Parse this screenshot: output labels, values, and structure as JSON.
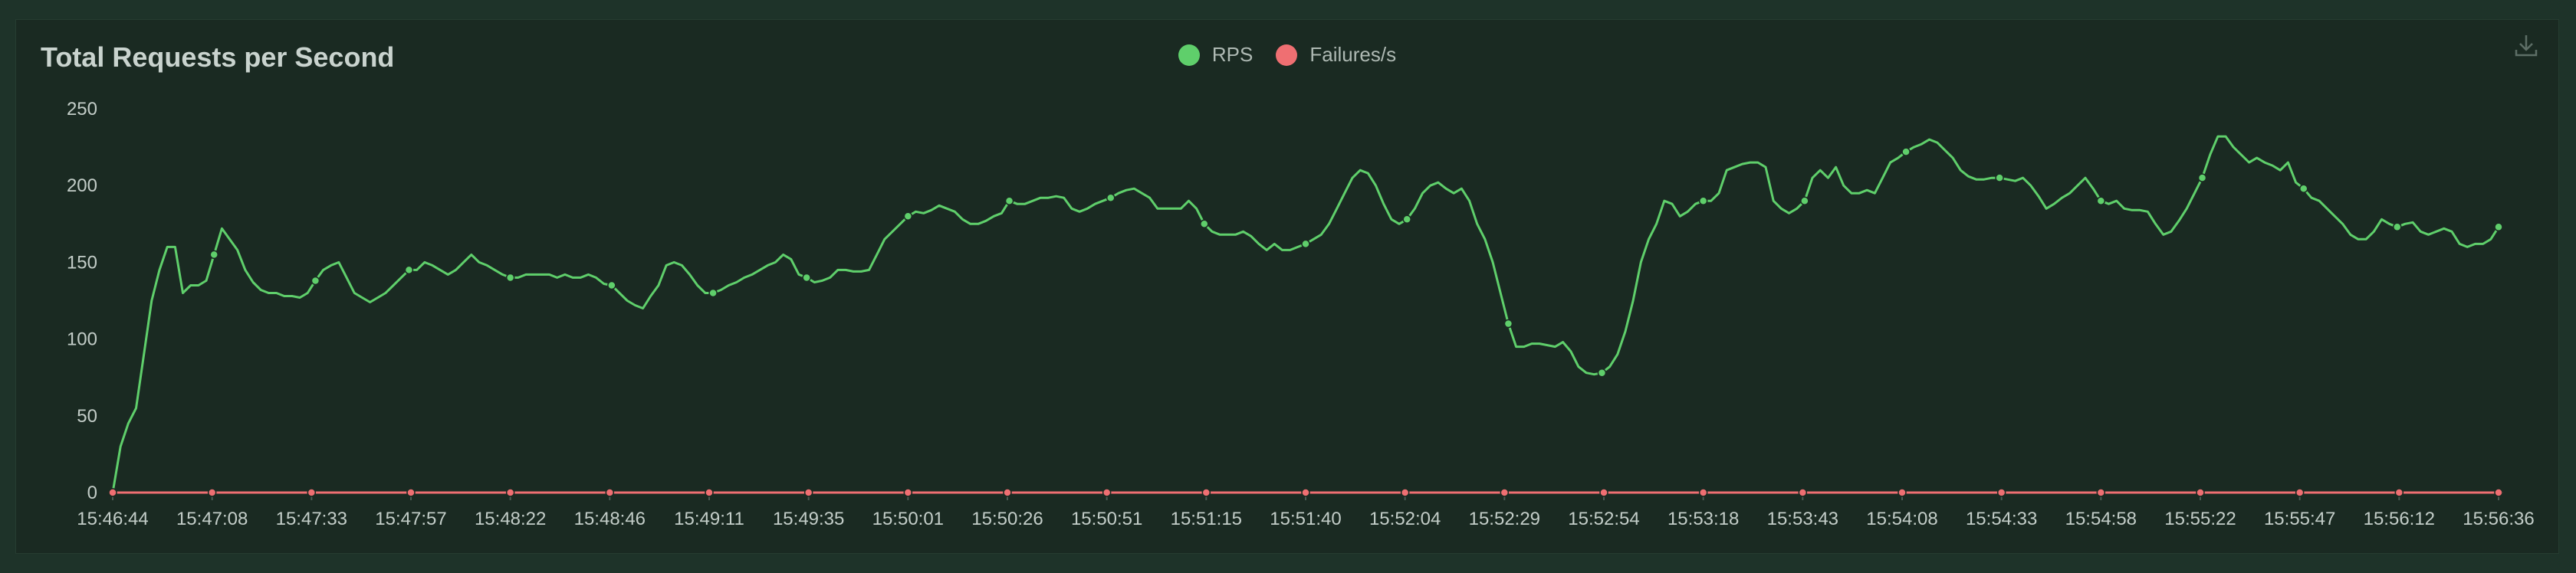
{
  "colors": {
    "rps": "#5fcf6b",
    "failures": "#ef6f72",
    "axis": "#4a5b53"
  },
  "download": {
    "icon": "download-icon"
  },
  "chart_data": {
    "type": "line",
    "title": "Total Requests per Second",
    "legend_position": "top-center",
    "grid": false,
    "ylim": [
      0,
      250
    ],
    "y_ticks": [
      "0",
      "50",
      "100",
      "150",
      "200",
      "250"
    ],
    "x_tick_labels": [
      "15:46:44",
      "15:47:08",
      "15:47:33",
      "15:47:57",
      "15:48:22",
      "15:48:46",
      "15:49:11",
      "15:49:35",
      "15:50:01",
      "15:50:26",
      "15:50:51",
      "15:51:15",
      "15:51:40",
      "15:52:04",
      "15:52:29",
      "15:52:54",
      "15:53:18",
      "15:53:43",
      "15:54:08",
      "15:54:33",
      "15:54:58",
      "15:55:22",
      "15:55:47",
      "15:56:12",
      "15:56:36"
    ],
    "series": [
      {
        "name": "RPS",
        "color": "#5fcf6b",
        "values": [
          0,
          30,
          45,
          55,
          90,
          125,
          145,
          160,
          160,
          130,
          135,
          135,
          138,
          155,
          172,
          165,
          158,
          145,
          137,
          132,
          130,
          130,
          128,
          128,
          127,
          130,
          138,
          145,
          148,
          150,
          140,
          130,
          127,
          124,
          127,
          130,
          135,
          140,
          145,
          145,
          150,
          148,
          145,
          142,
          145,
          150,
          155,
          150,
          148,
          145,
          142,
          140,
          140,
          142,
          142,
          142,
          142,
          140,
          142,
          140,
          140,
          142,
          140,
          136,
          135,
          130,
          125,
          122,
          120,
          128,
          135,
          148,
          150,
          148,
          142,
          135,
          130,
          130,
          132,
          135,
          137,
          140,
          142,
          145,
          148,
          150,
          155,
          152,
          142,
          140,
          137,
          138,
          140,
          145,
          145,
          144,
          144,
          145,
          155,
          165,
          170,
          175,
          180,
          183,
          182,
          184,
          187,
          185,
          183,
          178,
          175,
          175,
          177,
          180,
          182,
          190,
          188,
          188,
          190,
          192,
          192,
          193,
          192,
          185,
          183,
          185,
          188,
          190,
          192,
          195,
          197,
          198,
          195,
          192,
          185,
          185,
          185,
          185,
          190,
          185,
          175,
          170,
          168,
          168,
          168,
          170,
          167,
          162,
          158,
          162,
          158,
          158,
          160,
          162,
          165,
          168,
          175,
          185,
          195,
          205,
          210,
          208,
          200,
          188,
          178,
          175,
          178,
          185,
          195,
          200,
          202,
          198,
          195,
          198,
          190,
          175,
          165,
          150,
          130,
          110,
          95,
          95,
          97,
          97,
          96,
          95,
          98,
          92,
          82,
          78,
          77,
          78,
          82,
          90,
          105,
          125,
          150,
          165,
          175,
          190,
          188,
          180,
          183,
          188,
          190,
          190,
          195,
          210,
          212,
          214,
          215,
          215,
          212,
          190,
          185,
          182,
          185,
          190,
          205,
          210,
          205,
          212,
          200,
          195,
          195,
          197,
          195,
          205,
          215,
          218,
          222,
          225,
          227,
          230,
          228,
          223,
          218,
          210,
          206,
          204,
          204,
          205,
          205,
          204,
          203,
          205,
          200,
          193,
          185,
          188,
          192,
          195,
          200,
          205,
          198,
          190,
          188,
          190,
          185,
          184,
          184,
          183,
          175,
          168,
          170,
          177,
          185,
          195,
          205,
          220,
          232,
          232,
          225,
          220,
          215,
          218,
          215,
          213,
          210,
          215,
          202,
          198,
          192,
          190,
          185,
          180,
          175,
          168,
          165,
          165,
          170,
          178,
          175,
          173,
          175,
          176,
          170,
          168,
          170,
          172,
          170,
          162,
          160,
          162,
          162,
          165,
          173
        ]
      },
      {
        "name": "Failures/s",
        "color": "#ef6f72",
        "values": [
          0,
          0,
          0,
          0,
          0,
          0,
          0,
          0,
          0,
          0,
          0,
          0,
          0,
          0,
          0,
          0,
          0,
          0,
          0,
          0,
          0,
          0,
          0,
          0,
          0
        ]
      }
    ]
  }
}
